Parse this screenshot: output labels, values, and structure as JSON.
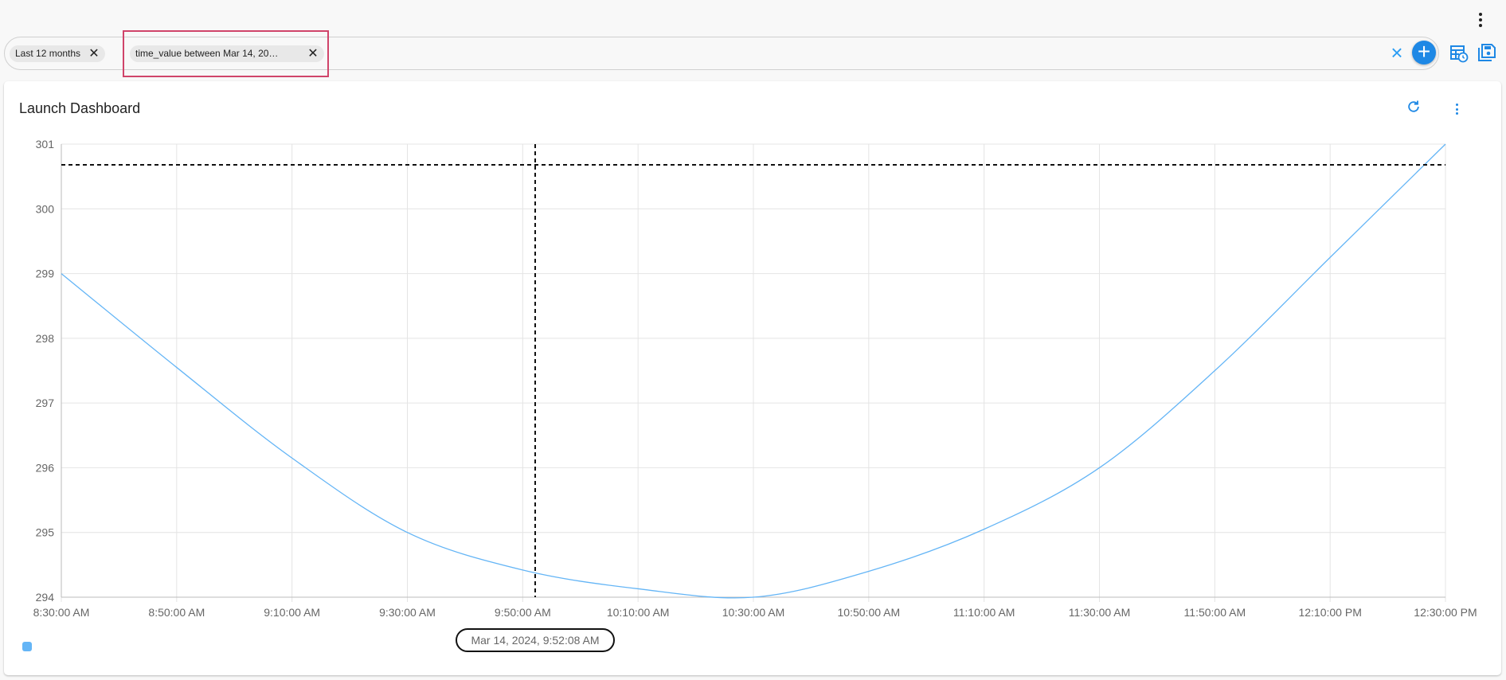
{
  "filters": {
    "chips": [
      {
        "label": "Last 12 months",
        "remove_icon": "close-icon"
      },
      {
        "label": "time_value between Mar 14, 20…",
        "remove_icon": "close-icon"
      }
    ],
    "clear_icon": "close-icon",
    "add_icon": "plus-icon"
  },
  "toolbar": {
    "icons": [
      "more-vert-icon",
      "table-schedule-icon",
      "save-icon"
    ]
  },
  "card": {
    "title": "Launch Dashboard",
    "icons": [
      "refresh-icon",
      "more-vert-icon"
    ]
  },
  "colors": {
    "series": "#64b5f6",
    "accent": "#1e88e5",
    "highlight": "#d0446a"
  },
  "chart_data": {
    "type": "line",
    "x": [
      "8:30:00 AM",
      "8:50:00 AM",
      "9:10:00 AM",
      "9:30:00 AM",
      "9:50:00 AM",
      "10:10:00 AM",
      "10:30:00 AM",
      "10:50:00 AM",
      "11:10:00 AM",
      "11:30:00 AM",
      "11:50:00 AM",
      "12:10:00 PM",
      "12:30:00 PM"
    ],
    "x_ticks": [
      "8:30:00 AM",
      "8:50:00 AM",
      "9:10:00 AM",
      "9:30:00 AM",
      "9:50:00 AM",
      "10:10:00 AM",
      "10:30:00 AM",
      "10:50:00 AM",
      "11:10:00 AM",
      "11:30:00 AM",
      "11:50:00 AM",
      "12:10:00 PM",
      "12:30:00 PM"
    ],
    "series": [
      {
        "values": [
          299,
          297.55,
          296.15,
          295,
          294.42,
          294.13,
          294,
          294.4,
          295.05,
          296,
          297.5,
          299.25,
          301
        ]
      }
    ],
    "y_ticks": [
      294,
      295,
      296,
      297,
      298,
      299,
      300,
      301
    ],
    "ylim": [
      294,
      301
    ],
    "grid": true,
    "crosshair": {
      "x_label": "Mar 14, 2024, 9:52:08 AM",
      "y": 300.68
    }
  }
}
